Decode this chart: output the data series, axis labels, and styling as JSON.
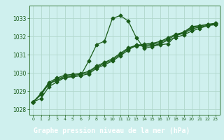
{
  "title": "Graphe pression niveau de la mer (hPa)",
  "bg_color": "#cff0ee",
  "title_bg_color": "#3a7a3a",
  "title_text_color": "#ffffff",
  "grid_color": "#b0d8cc",
  "line_color": "#1a5c1a",
  "spine_color": "#3a7a3a",
  "xlim": [
    -0.5,
    23.5
  ],
  "ylim": [
    1027.7,
    1033.7
  ],
  "yticks": [
    1028,
    1029,
    1030,
    1031,
    1032,
    1033
  ],
  "xticks": [
    0,
    1,
    2,
    3,
    4,
    5,
    6,
    7,
    8,
    9,
    10,
    11,
    12,
    13,
    14,
    15,
    16,
    17,
    18,
    19,
    20,
    21,
    22,
    23
  ],
  "series": [
    [
      1028.4,
      1028.6,
      1029.25,
      1029.5,
      1029.75,
      1029.8,
      1029.85,
      1030.65,
      1031.55,
      1031.75,
      1033.0,
      1033.15,
      1032.85,
      1031.95,
      1031.35,
      1031.45,
      1031.55,
      1031.6,
      1032.05,
      1032.25,
      1032.55,
      1032.6,
      1032.65,
      1032.65
    ],
    [
      1028.4,
      1028.8,
      1029.4,
      1029.6,
      1029.75,
      1029.8,
      1029.85,
      1029.95,
      1030.25,
      1030.45,
      1030.65,
      1030.95,
      1031.25,
      1031.55,
      1031.45,
      1031.5,
      1031.6,
      1031.8,
      1031.95,
      1032.1,
      1032.3,
      1032.45,
      1032.6,
      1032.65
    ],
    [
      1028.4,
      1028.85,
      1029.42,
      1029.65,
      1029.82,
      1029.87,
      1029.92,
      1030.02,
      1030.32,
      1030.52,
      1030.72,
      1031.02,
      1031.32,
      1031.48,
      1031.52,
      1031.57,
      1031.67,
      1031.87,
      1032.07,
      1032.17,
      1032.42,
      1032.52,
      1032.62,
      1032.72
    ],
    [
      1028.4,
      1028.88,
      1029.48,
      1029.72,
      1029.88,
      1029.92,
      1029.97,
      1030.08,
      1030.38,
      1030.58,
      1030.78,
      1031.08,
      1031.38,
      1031.52,
      1031.58,
      1031.63,
      1031.73,
      1031.93,
      1032.13,
      1032.23,
      1032.48,
      1032.58,
      1032.68,
      1032.73
    ]
  ],
  "marker": "D",
  "marker_size": 2.5,
  "linewidth": 0.9,
  "title_fontsize": 7,
  "tick_fontsize": 5.5
}
